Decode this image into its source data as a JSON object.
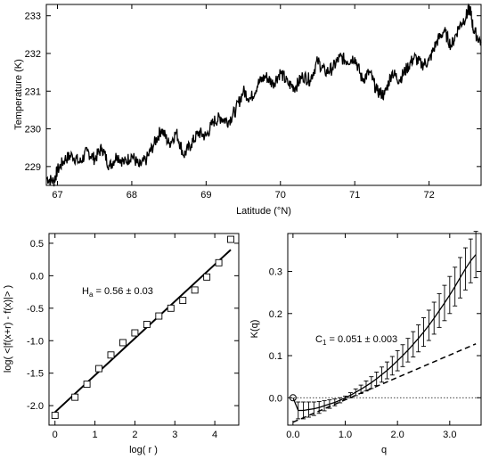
{
  "chart_data": [
    {
      "type": "line",
      "xlabel": "Latitude (°N)",
      "ylabel": "Temperature   (K)",
      "xlim": [
        66.85,
        72.7
      ],
      "ylim": [
        228.5,
        233.3
      ],
      "xticks": [
        "67",
        "68",
        "69",
        "70",
        "71",
        "72"
      ],
      "xtick_values": [
        67,
        68,
        69,
        70,
        71,
        72
      ],
      "yticks": [
        "229",
        "230",
        "231",
        "232",
        "233"
      ],
      "ytick_values": [
        229,
        230,
        231,
        232,
        233
      ],
      "series": [
        {
          "x": [
            66.85,
            66.95,
            67.0,
            67.1,
            67.2,
            67.3,
            67.4,
            67.5,
            67.6,
            67.7,
            67.8,
            67.9,
            68.0,
            68.1,
            68.2,
            68.3,
            68.4,
            68.5,
            68.6,
            68.7,
            68.8,
            68.9,
            69.0,
            69.1,
            69.2,
            69.3,
            69.4,
            69.5,
            69.6,
            69.7,
            69.8,
            69.9,
            70.0,
            70.1,
            70.2,
            70.3,
            70.4,
            70.5,
            70.6,
            70.7,
            70.8,
            70.9,
            71.0,
            71.1,
            71.2,
            71.3,
            71.4,
            71.5,
            71.6,
            71.7,
            71.8,
            71.9,
            72.0,
            72.1,
            72.2,
            72.3,
            72.4,
            72.5,
            72.55,
            72.6,
            72.7
          ],
          "values": [
            228.7,
            228.6,
            228.9,
            229.2,
            229.3,
            229.1,
            229.4,
            229.2,
            229.5,
            229.0,
            229.3,
            229.1,
            229.3,
            229.0,
            229.2,
            229.6,
            230.0,
            229.6,
            229.9,
            229.3,
            229.6,
            229.9,
            229.8,
            230.2,
            230.3,
            230.2,
            230.5,
            231.0,
            230.8,
            231.2,
            231.4,
            231.2,
            231.5,
            231.2,
            231.1,
            231.4,
            231.3,
            231.8,
            231.5,
            231.6,
            231.9,
            231.8,
            231.9,
            231.3,
            231.5,
            231.0,
            230.9,
            231.5,
            231.3,
            231.6,
            231.9,
            231.7,
            231.8,
            232.3,
            232.6,
            232.2,
            232.7,
            233.0,
            233.2,
            232.6,
            232.3
          ]
        }
      ]
    },
    {
      "type": "scatter",
      "xlabel": "log( r )",
      "ylabel": "log( <|f(x+r) - f(x)|> )",
      "xlim": [
        -0.15,
        4.6
      ],
      "ylim": [
        -2.3,
        0.65
      ],
      "xticks": [
        "0",
        "1",
        "2",
        "3",
        "4"
      ],
      "xtick_values": [
        0,
        1,
        2,
        3,
        4
      ],
      "yticks": [
        "-2.0",
        "-1.5",
        "-1.0",
        "-0.5",
        "0.0",
        "0.5"
      ],
      "ytick_values": [
        -2.0,
        -1.5,
        -1.0,
        -0.5,
        0.0,
        0.5
      ],
      "annotation": "H",
      "annotation_sub": "a",
      "annotation_rest": " = 0.56 ± 0.03",
      "points": {
        "x": [
          0.0,
          0.5,
          0.8,
          1.1,
          1.4,
          1.7,
          2.0,
          2.3,
          2.6,
          2.9,
          3.2,
          3.5,
          3.8,
          4.1,
          4.4
        ],
        "y": [
          -2.15,
          -1.87,
          -1.67,
          -1.43,
          -1.22,
          -1.03,
          -0.88,
          -0.75,
          -0.62,
          -0.5,
          -0.38,
          -0.22,
          -0.02,
          0.2,
          0.56
        ]
      },
      "fit": {
        "x": [
          0.0,
          4.4
        ],
        "y": [
          -2.1,
          0.4
        ]
      }
    },
    {
      "type": "line",
      "xlabel": "q",
      "ylabel": "K(q)",
      "xlim": [
        -0.1,
        3.6
      ],
      "ylim": [
        -0.065,
        0.39
      ],
      "xticks": [
        "0.0",
        "1.0",
        "2.0",
        "3.0"
      ],
      "xtick_values": [
        0,
        1,
        2,
        3
      ],
      "yticks": [
        "0.0",
        "0.1",
        "0.2",
        "0.3"
      ],
      "ytick_values": [
        0.0,
        0.1,
        0.2,
        0.3
      ],
      "annotation": "C",
      "annotation_sub": "1",
      "annotation_rest": " = 0.051 ± 0.003",
      "solid_curve": {
        "q": [
          0.0,
          0.1,
          0.2,
          0.3,
          0.4,
          0.5,
          0.6,
          0.7,
          0.8,
          0.9,
          1.0,
          1.1,
          1.2,
          1.3,
          1.4,
          1.5,
          1.6,
          1.7,
          1.8,
          1.9,
          2.0,
          2.1,
          2.2,
          2.3,
          2.4,
          2.5,
          2.6,
          2.7,
          2.8,
          2.9,
          3.0,
          3.1,
          3.2,
          3.3,
          3.4,
          3.5
        ],
        "k": [
          0.0,
          -0.03,
          -0.03,
          -0.028,
          -0.026,
          -0.023,
          -0.019,
          -0.015,
          -0.011,
          -0.006,
          0.0,
          0.006,
          0.013,
          0.02,
          0.028,
          0.036,
          0.045,
          0.055,
          0.065,
          0.076,
          0.088,
          0.1,
          0.113,
          0.127,
          0.141,
          0.156,
          0.172,
          0.189,
          0.207,
          0.225,
          0.244,
          0.264,
          0.285,
          0.306,
          0.325,
          0.34
        ],
        "err": [
          0.0,
          0.02,
          0.02,
          0.018,
          0.016,
          0.014,
          0.012,
          0.01,
          0.008,
          0.006,
          0.004,
          0.006,
          0.008,
          0.01,
          0.012,
          0.014,
          0.016,
          0.018,
          0.02,
          0.022,
          0.024,
          0.026,
          0.028,
          0.03,
          0.032,
          0.034,
          0.036,
          0.038,
          0.04,
          0.042,
          0.044,
          0.046,
          0.048,
          0.05,
          0.052,
          0.055
        ]
      },
      "dashed_line": {
        "q": [
          0.0,
          3.5
        ],
        "k": [
          -0.058,
          0.128
        ]
      },
      "dotted_line": {
        "q": [
          -0.1,
          3.6
        ],
        "k": [
          0.0,
          0.0
        ]
      },
      "origin_marker": {
        "q": 0.0,
        "k": 0.0
      }
    }
  ],
  "colors": {
    "ink": "#000000",
    "background": "#ffffff"
  }
}
